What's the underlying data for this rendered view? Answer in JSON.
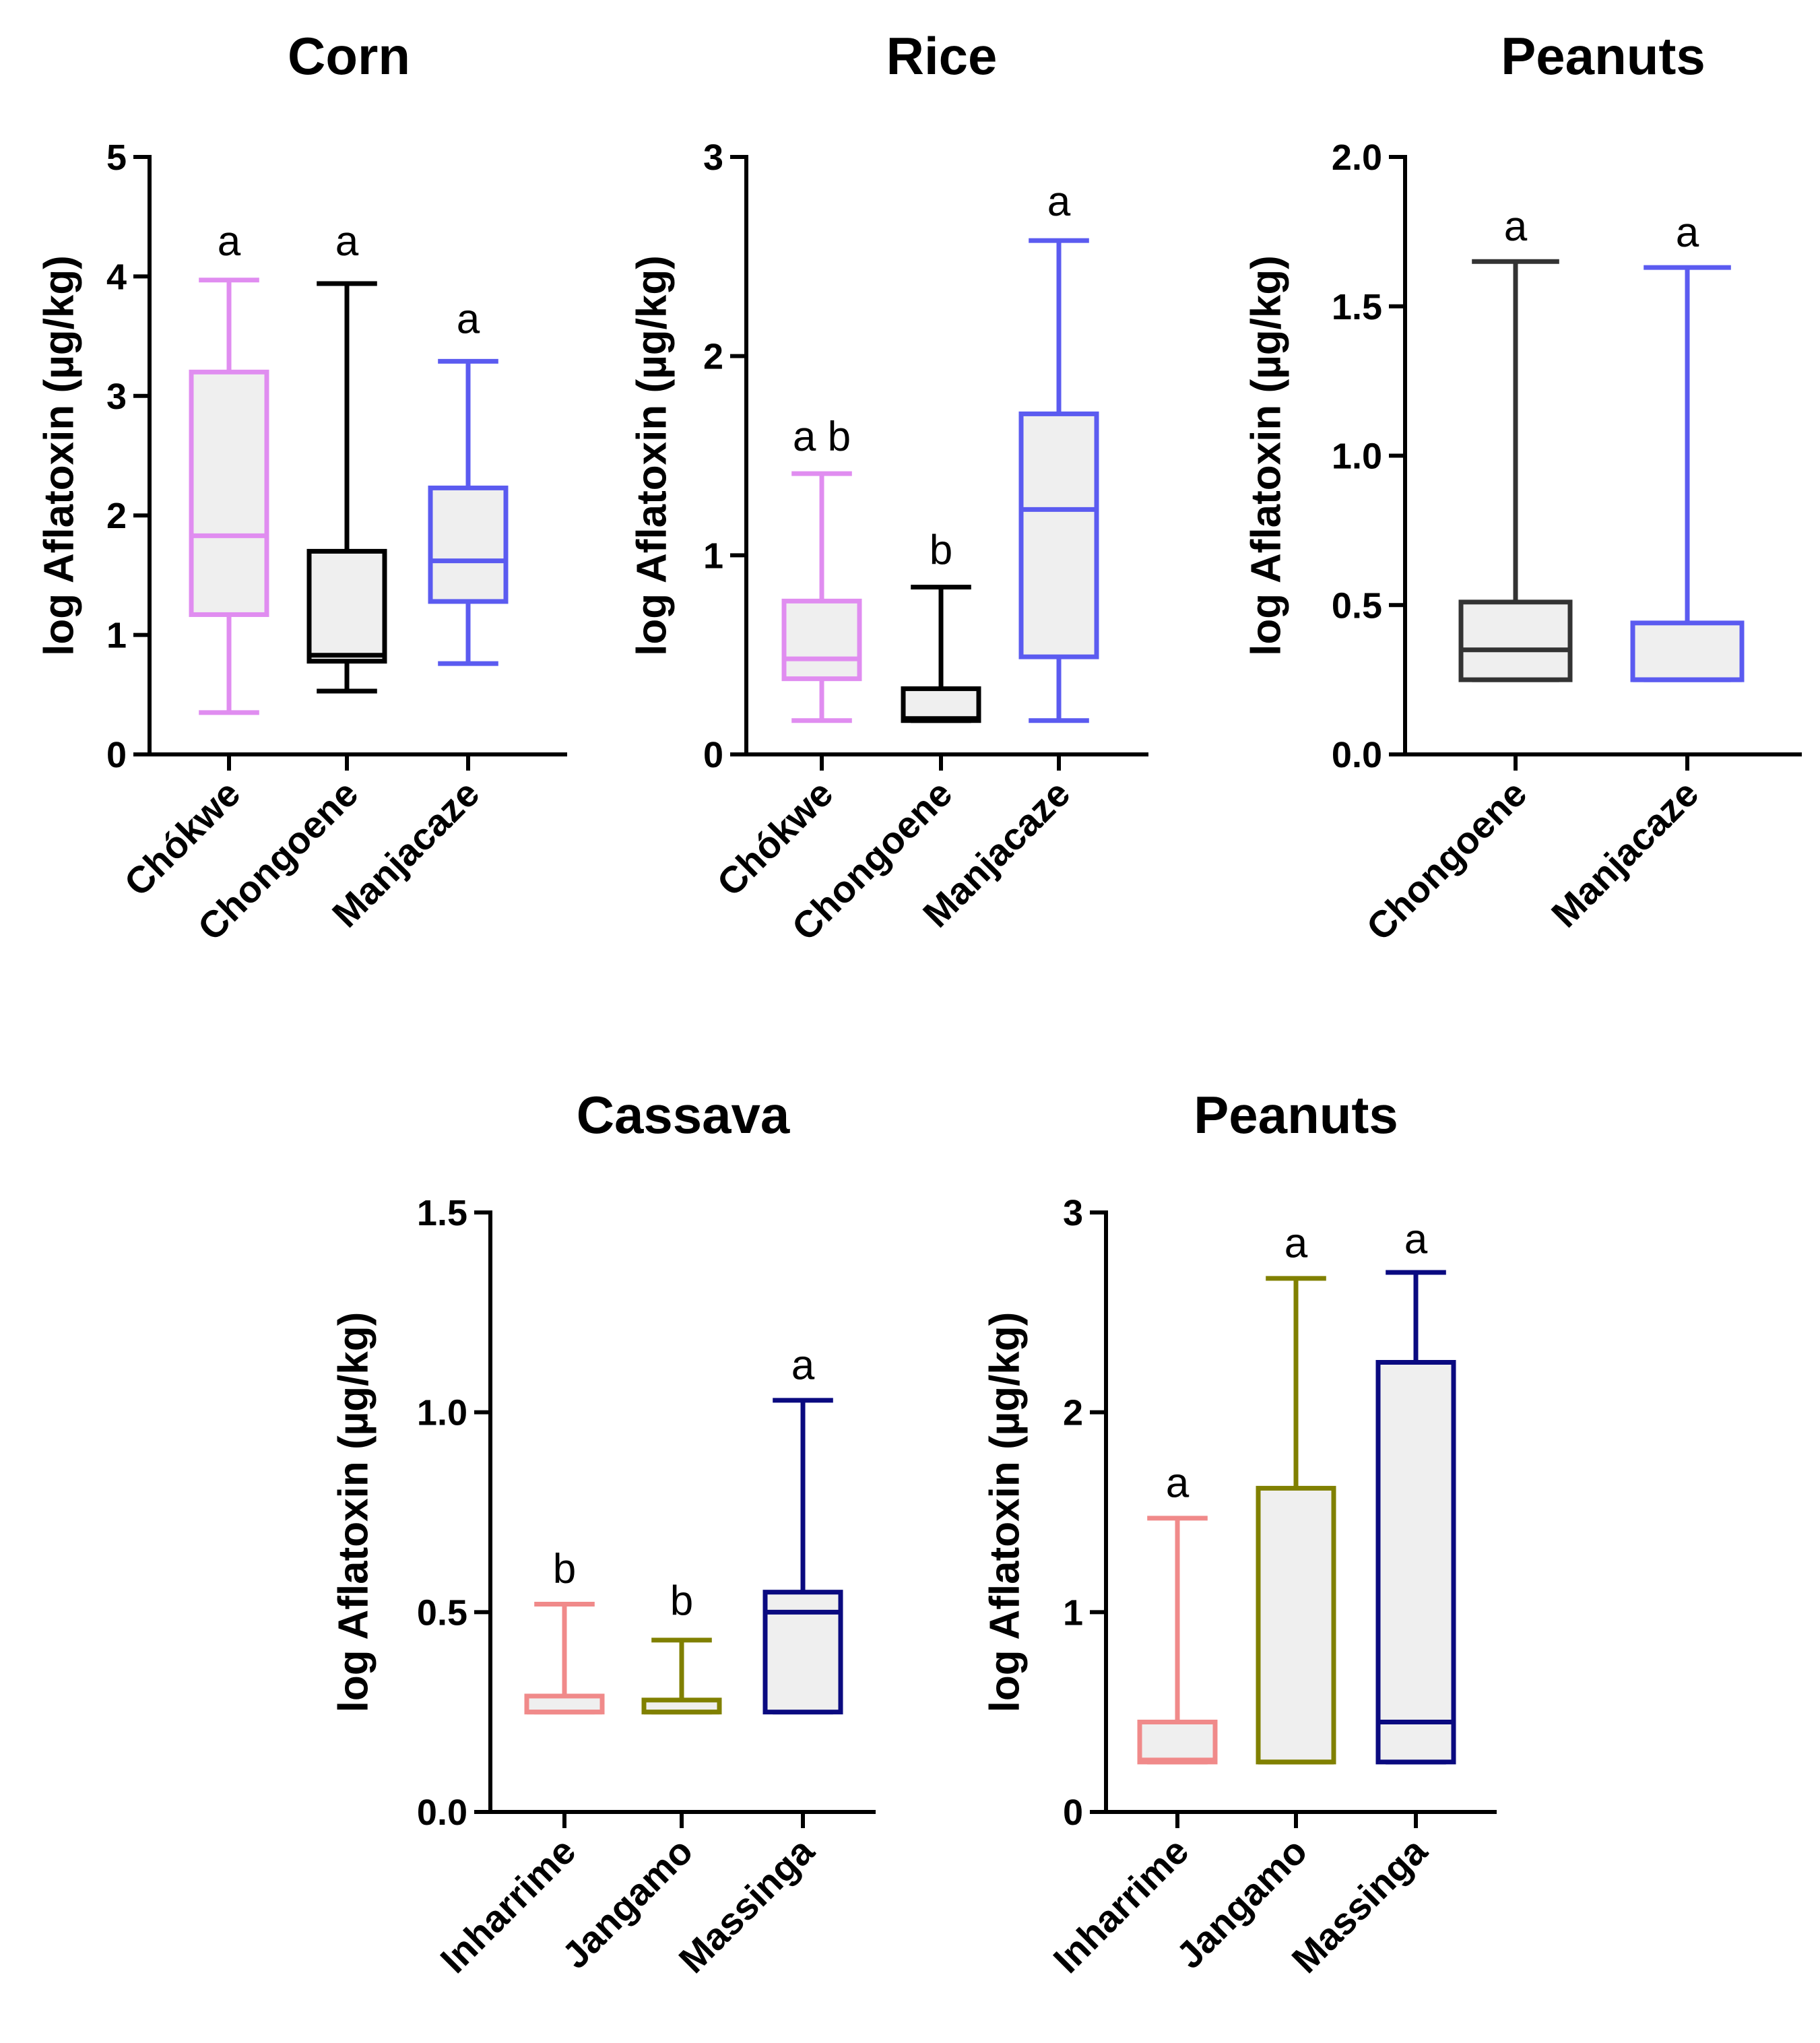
{
  "chart_data": [
    {
      "type": "box",
      "title": "Corn",
      "ylabel": "log Aflatoxin (µg/kg)",
      "ylim": [
        0,
        5
      ],
      "yticks": [
        0,
        1,
        2,
        3,
        4,
        5
      ],
      "ytick_labels": [
        "0",
        "1",
        "2",
        "3",
        "4",
        "5"
      ],
      "categories": [
        "Chókwe",
        "Chongoene",
        "Manjacaze"
      ],
      "colors": [
        "#e08df0",
        "#000000",
        "#5b5bf0"
      ],
      "boxes": [
        {
          "min": 0.35,
          "q1": 1.17,
          "median": 1.83,
          "q3": 3.2,
          "max": 3.97
        },
        {
          "min": 0.53,
          "q1": 0.78,
          "median": 0.83,
          "q3": 1.7,
          "max": 3.94
        },
        {
          "min": 0.76,
          "q1": 1.28,
          "median": 1.62,
          "q3": 2.23,
          "max": 3.29
        }
      ],
      "significance": [
        "a",
        "a",
        "a"
      ],
      "sig_y": [
        4.3,
        4.3,
        3.65
      ]
    },
    {
      "type": "box",
      "title": "Rice",
      "ylabel": "log Aflatoxin (µg/kg)",
      "ylim": [
        0,
        3
      ],
      "yticks": [
        0,
        1,
        2,
        3
      ],
      "ytick_labels": [
        "0",
        "1",
        "2",
        "3"
      ],
      "categories": [
        "Chókwe",
        "Chongoene",
        "Manjacaze"
      ],
      "colors": [
        "#e08df0",
        "#000000",
        "#5b5bf0"
      ],
      "boxes": [
        {
          "min": 0.17,
          "q1": 0.38,
          "median": 0.48,
          "q3": 0.77,
          "max": 1.41
        },
        {
          "min": 0.17,
          "q1": 0.17,
          "median": 0.18,
          "q3": 0.33,
          "max": 0.84
        },
        {
          "min": 0.17,
          "q1": 0.49,
          "median": 1.23,
          "q3": 1.71,
          "max": 2.58
        }
      ],
      "significance": [
        "a b",
        "b",
        "a"
      ],
      "sig_y": [
        1.6,
        1.03,
        2.78
      ]
    },
    {
      "type": "box",
      "title": "Peanuts",
      "ylabel": "log Aflatoxin (µg/kg)",
      "ylim": [
        0,
        2
      ],
      "yticks": [
        0,
        0.5,
        1,
        1.5,
        2
      ],
      "ytick_labels": [
        "0.0",
        "0.5",
        "1.0",
        "1.5",
        "2.0"
      ],
      "categories": [
        "Chongoene",
        "Manjacaze"
      ],
      "colors": [
        "#333333",
        "#5b5bf0"
      ],
      "boxes": [
        {
          "min": 0.25,
          "q1": 0.25,
          "median": 0.35,
          "q3": 0.51,
          "max": 1.65
        },
        {
          "min": 0.25,
          "q1": 0.25,
          "median": 0.25,
          "q3": 0.44,
          "max": 1.63
        }
      ],
      "significance": [
        "a",
        "a"
      ],
      "sig_y": [
        1.77,
        1.75
      ]
    },
    {
      "type": "box",
      "title": "Cassava",
      "ylabel": "log Aflatoxin (µg/kg)",
      "ylim": [
        0,
        1.5
      ],
      "yticks": [
        0,
        0.5,
        1,
        1.5
      ],
      "ytick_labels": [
        "0.0",
        "0.5",
        "1.0",
        "1.5"
      ],
      "categories": [
        "Inharrime",
        "Jangamo",
        "Massinga"
      ],
      "colors": [
        "#f08a8a",
        "#808000",
        "#0a0a80"
      ],
      "boxes": [
        {
          "min": 0.25,
          "q1": 0.25,
          "median": 0.25,
          "q3": 0.29,
          "max": 0.52
        },
        {
          "min": 0.25,
          "q1": 0.25,
          "median": 0.25,
          "q3": 0.28,
          "max": 0.43
        },
        {
          "min": 0.25,
          "q1": 0.25,
          "median": 0.5,
          "q3": 0.55,
          "max": 1.03
        }
      ],
      "significance": [
        "b",
        "b",
        "a"
      ],
      "sig_y": [
        0.61,
        0.53,
        1.12
      ]
    },
    {
      "type": "box",
      "title": "Peanuts",
      "ylabel": "log Aflatoxin (µg/kg)",
      "ylim": [
        0,
        3
      ],
      "yticks": [
        0,
        1,
        2,
        3
      ],
      "ytick_labels": [
        "0",
        "1",
        "2",
        "3"
      ],
      "categories": [
        "Inharrime",
        "Jangamo",
        "Massinga"
      ],
      "colors": [
        "#f08a8a",
        "#808000",
        "#0a0a80"
      ],
      "boxes": [
        {
          "min": 0.25,
          "q1": 0.25,
          "median": 0.26,
          "q3": 0.45,
          "max": 1.47
        },
        {
          "min": 0.25,
          "q1": 0.25,
          "median": 0.25,
          "q3": 1.62,
          "max": 2.67
        },
        {
          "min": 0.25,
          "q1": 0.25,
          "median": 0.45,
          "q3": 2.25,
          "max": 2.7
        }
      ],
      "significance": [
        "a",
        "a",
        "a"
      ],
      "sig_y": [
        1.65,
        2.85,
        2.87
      ]
    }
  ]
}
